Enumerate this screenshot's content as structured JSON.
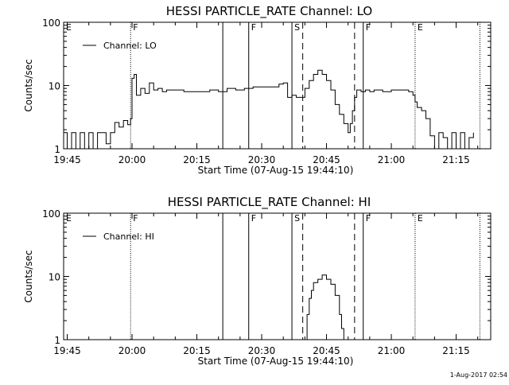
{
  "chart_data": [
    {
      "type": "line",
      "title": "HESSI PARTICLE_RATE Channel: LO",
      "xlabel": "Start Time (07-Aug-15 19:44:10)",
      "ylabel": "Counts/sec",
      "yscale": "log",
      "ylim": [
        1,
        100
      ],
      "xlim": [
        "19:44:10",
        "21:23:00"
      ],
      "x_ticks": [
        "19:45",
        "20:00",
        "20:15",
        "20:30",
        "20:45",
        "21:00",
        "21:15"
      ],
      "y_ticks": [
        "1",
        "10",
        "100"
      ],
      "legend": {
        "placement": "top-left",
        "entries": [
          "Channel: LO"
        ]
      },
      "series": [
        {
          "name": "Channel: LO",
          "x": [
            "19:44:10",
            "19:45",
            "19:46",
            "19:47",
            "19:48",
            "19:49",
            "19:50",
            "19:51",
            "19:52",
            "19:53",
            "19:54",
            "19:55",
            "19:56",
            "19:57",
            "19:58",
            "19:59",
            "19:59:40",
            "20:00",
            "20:00:30",
            "20:01",
            "20:02",
            "20:03",
            "20:04",
            "20:05",
            "20:06",
            "20:07",
            "20:08",
            "20:10",
            "20:12",
            "20:14",
            "20:16",
            "20:18",
            "20:20",
            "20:22",
            "20:24",
            "20:26",
            "20:28",
            "20:30",
            "20:32",
            "20:34",
            "20:35",
            "20:36",
            "20:37",
            "20:38",
            "20:39",
            "20:40",
            "20:41",
            "20:42",
            "20:43",
            "20:44",
            "20:45",
            "20:46",
            "20:47",
            "20:48",
            "20:49",
            "20:50",
            "20:50:30",
            "20:51",
            "20:51:30",
            "20:52",
            "20:53",
            "20:54",
            "20:55",
            "20:56",
            "20:58",
            "21:00",
            "21:02",
            "21:04",
            "21:05",
            "21:05:30",
            "21:06",
            "21:07",
            "21:08",
            "21:09",
            "21:10",
            "21:11",
            "21:12",
            "21:13",
            "21:14",
            "21:15",
            "21:16",
            "21:17",
            "21:18",
            "21:19"
          ],
          "values": [
            1.8,
            1.0,
            1.8,
            1.0,
            1.8,
            1.0,
            1.8,
            1.0,
            1.8,
            1.8,
            1.2,
            1.8,
            2.6,
            2.2,
            2.8,
            2.4,
            3.0,
            13.0,
            15.0,
            7.0,
            9.0,
            7.5,
            11.0,
            8.5,
            9.0,
            8.0,
            8.5,
            8.5,
            8.0,
            8.0,
            8.0,
            8.5,
            8.0,
            9.0,
            8.5,
            9.0,
            9.5,
            9.5,
            9.5,
            10.5,
            11.0,
            6.5,
            7.0,
            6.5,
            6.5,
            9.0,
            12.0,
            15.0,
            17.5,
            15.0,
            12.0,
            8.5,
            5.0,
            3.5,
            2.5,
            1.8,
            2.5,
            4.0,
            6.5,
            8.5,
            8.0,
            8.5,
            8.0,
            8.5,
            8.0,
            8.5,
            8.5,
            8.0,
            7.0,
            5.5,
            4.5,
            4.0,
            3.0,
            1.6,
            1.0,
            1.8,
            1.5,
            1.0,
            1.8,
            1.0,
            1.8,
            1.0,
            1.5,
            1.8
          ]
        }
      ],
      "vertical_markers": [
        {
          "time": "19:59:40",
          "style": "dotted",
          "label": "F"
        },
        {
          "time": "20:21:00",
          "style": "solid",
          "label": ""
        },
        {
          "time": "20:27:00",
          "style": "solid",
          "label": "F"
        },
        {
          "time": "20:37:00",
          "style": "solid",
          "label": "S"
        },
        {
          "time": "20:39:30",
          "style": "dashed",
          "label": ""
        },
        {
          "time": "20:51:30",
          "style": "dashed",
          "label": ""
        },
        {
          "time": "20:53:30",
          "style": "solid",
          "label": "F"
        },
        {
          "time": "21:05:30",
          "style": "dotted",
          "label": "E"
        },
        {
          "time": "21:20:30",
          "style": "dotted",
          "label": ""
        }
      ],
      "edge_label": "E"
    },
    {
      "type": "line",
      "title": "HESSI PARTICLE_RATE Channel: HI",
      "xlabel": "Start Time (07-Aug-15 19:44:10)",
      "ylabel": "Counts/sec",
      "yscale": "log",
      "ylim": [
        1,
        100
      ],
      "xlim": [
        "19:44:10",
        "21:23:00"
      ],
      "x_ticks": [
        "19:45",
        "20:00",
        "20:15",
        "20:30",
        "20:45",
        "21:00",
        "21:15"
      ],
      "y_ticks": [
        "1",
        "10",
        "100"
      ],
      "legend": {
        "placement": "top-left",
        "entries": [
          "Channel: HI"
        ]
      },
      "series": [
        {
          "name": "Channel: HI",
          "x": [
            "20:39:50",
            "20:40:30",
            "20:41",
            "20:41:30",
            "20:42",
            "20:43",
            "20:44",
            "20:45",
            "20:46",
            "20:47",
            "20:48",
            "20:48:30",
            "20:49"
          ],
          "values": [
            1.0,
            2.5,
            4.5,
            6.0,
            8.0,
            9.0,
            10.5,
            9.0,
            7.5,
            5.0,
            2.5,
            1.5,
            1.0
          ]
        }
      ],
      "vertical_markers": [
        {
          "time": "19:59:40",
          "style": "dotted",
          "label": "F"
        },
        {
          "time": "20:21:00",
          "style": "solid",
          "label": ""
        },
        {
          "time": "20:27:00",
          "style": "solid",
          "label": "F"
        },
        {
          "time": "20:37:00",
          "style": "solid",
          "label": "S"
        },
        {
          "time": "20:39:30",
          "style": "dashed",
          "label": ""
        },
        {
          "time": "20:51:30",
          "style": "dashed",
          "label": ""
        },
        {
          "time": "20:53:30",
          "style": "solid",
          "label": "F"
        },
        {
          "time": "21:05:30",
          "style": "dotted",
          "label": "E"
        },
        {
          "time": "21:20:30",
          "style": "dotted",
          "label": ""
        }
      ],
      "edge_label": "E"
    }
  ],
  "footer": {
    "timestamp": "1-Aug-2017 02:54"
  },
  "colors": {
    "background": "#ffffff",
    "foreground": "#000000"
  }
}
